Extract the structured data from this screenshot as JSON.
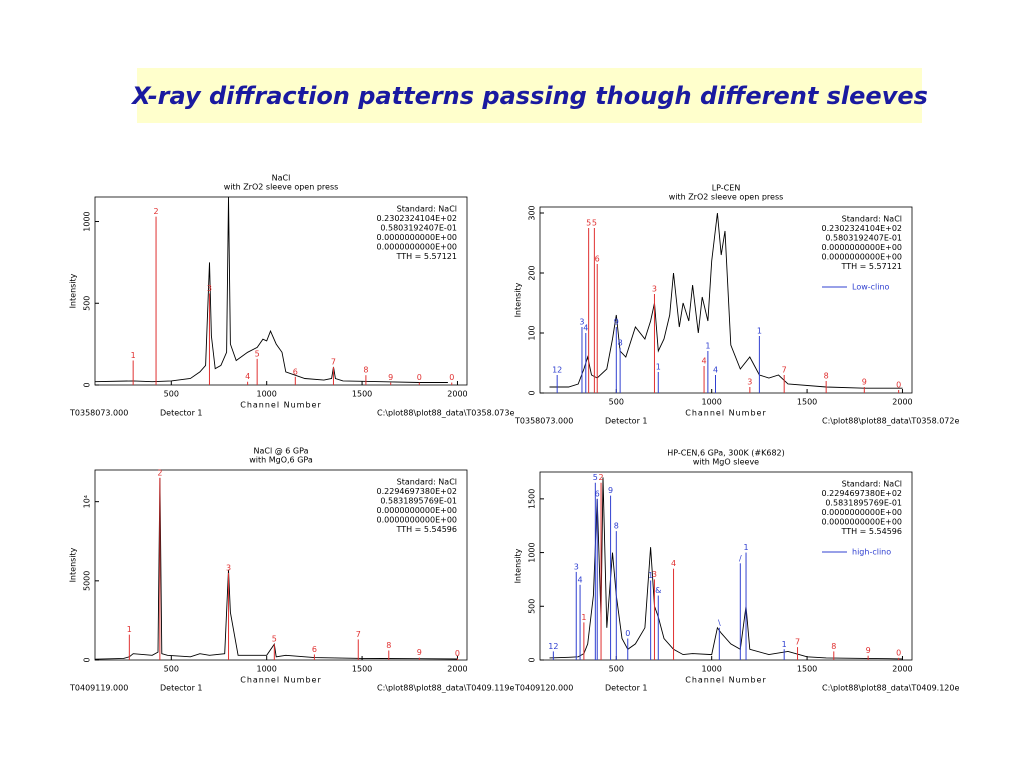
{
  "title": "X-ray diffraction patterns passing though different sleeves",
  "chart_data": [
    {
      "type": "line",
      "title": "NaCl",
      "subtitle": "with ZrO2 sleeve open press",
      "xlabel": "Channel Number",
      "ylabel": "Intensity",
      "xlim": [
        100,
        2050
      ],
      "xticks": [
        500,
        1000,
        1500,
        2000
      ],
      "ylim": [
        0,
        1150
      ],
      "yticks": [
        0,
        500,
        1000
      ],
      "info": [
        "Standard: NaCl",
        "0.2302324104E+02",
        "0.5803192407E-01",
        "0.0000000000E+00",
        "0.0000000000E+00",
        "TTH =    5.57121"
      ],
      "footer": [
        "T0358073.000",
        "Detector 1",
        "C:\\plot88\\plot88_data\\T0358.073e"
      ],
      "series": [
        {
          "style": "line",
          "color": "#000000",
          "x": [
            100,
            300,
            400,
            500,
            600,
            650,
            680,
            700,
            710,
            730,
            760,
            790,
            800,
            810,
            840,
            900,
            950,
            980,
            1000,
            1020,
            1050,
            1080,
            1100,
            1200,
            1300,
            1340,
            1350,
            1360,
            1400,
            1600,
            1800,
            1950
          ],
          "values": [
            20,
            25,
            20,
            25,
            40,
            80,
            120,
            750,
            300,
            100,
            120,
            200,
            1150,
            250,
            150,
            200,
            230,
            280,
            270,
            330,
            250,
            200,
            80,
            40,
            30,
            40,
            110,
            40,
            25,
            20,
            15,
            15
          ]
        },
        {
          "style": "stick",
          "color": "#e03030",
          "x": [
            300,
            420,
            700,
            900,
            950,
            1150,
            1350,
            1520,
            1650,
            1800,
            1970
          ],
          "values": [
            150,
            1030,
            560,
            20,
            160,
            50,
            110,
            60,
            15,
            15,
            15
          ],
          "labels": [
            "1",
            "2",
            "3",
            "4",
            "5",
            "6",
            "7",
            "8",
            "9",
            "0",
            "0"
          ]
        }
      ]
    },
    {
      "type": "line",
      "title": "LP-CEN",
      "subtitle": "with ZrO2 sleeve open press",
      "xlabel": "Channel Number",
      "ylabel": "Intensity",
      "xlim": [
        100,
        2050
      ],
      "xticks": [
        500,
        1000,
        1500,
        2000
      ],
      "ylim": [
        0,
        310
      ],
      "yticks": [
        0,
        100,
        200,
        300
      ],
      "info": [
        "Standard: NaCl",
        "0.2302324104E+02",
        "0.5803192407E-01",
        "0.0000000000E+00",
        "0.0000000000E+00",
        "TTH =    5.57121"
      ],
      "footer": [
        "T0358073.000",
        "Detector 1",
        "C:\\plot88\\plot88_data\\T0358.072e"
      ],
      "series": [
        {
          "style": "line",
          "color": "#000000",
          "x": [
            150,
            250,
            300,
            330,
            350,
            370,
            400,
            450,
            480,
            500,
            520,
            550,
            600,
            650,
            680,
            700,
            720,
            750,
            780,
            800,
            830,
            850,
            880,
            900,
            930,
            950,
            980,
            1000,
            1030,
            1050,
            1070,
            1100,
            1150,
            1200,
            1250,
            1300,
            1350,
            1400,
            1600,
            1800,
            2000
          ],
          "values": [
            10,
            10,
            15,
            40,
            60,
            30,
            25,
            40,
            90,
            130,
            70,
            60,
            110,
            90,
            120,
            150,
            70,
            90,
            130,
            200,
            110,
            150,
            120,
            180,
            100,
            160,
            120,
            220,
            300,
            230,
            270,
            80,
            40,
            60,
            30,
            25,
            30,
            15,
            10,
            8,
            8
          ]
        },
        {
          "style": "stick",
          "color": "#e03030",
          "x": [
            355,
            385,
            400,
            700,
            960,
            1200,
            1380,
            1600,
            1800,
            1980
          ],
          "values": [
            275,
            275,
            215,
            165,
            45,
            10,
            30,
            20,
            10,
            5
          ],
          "labels": [
            "5",
            "5",
            "6",
            "3",
            "4",
            "3",
            "7",
            "8",
            "9",
            "0"
          ]
        },
        {
          "style": "stick",
          "name": "Low-clino",
          "color": "#3040d0",
          "x": [
            190,
            320,
            340,
            500,
            520,
            720,
            980,
            1020,
            1250
          ],
          "values": [
            30,
            110,
            100,
            110,
            75,
            35,
            70,
            30,
            95
          ],
          "labels": [
            "12",
            "3",
            "4",
            "9",
            "8",
            "1",
            "1",
            "4",
            "1"
          ]
        }
      ]
    },
    {
      "type": "line",
      "title": "NaCl @ 6 GPa",
      "subtitle": "with MgO,6 GPa",
      "xlabel": "Channel Number",
      "ylabel": "Intensity",
      "xlim": [
        100,
        2050
      ],
      "xticks": [
        500,
        1000,
        1500,
        2000
      ],
      "ylim": [
        0,
        12000
      ],
      "yticks": [
        0,
        5000,
        {
          "value": 10000,
          "label": "10⁴"
        }
      ],
      "info": [
        "Standard: NaCl",
        "0.2294697380E+02",
        "0.5831895769E-01",
        "0.0000000000E+00",
        "0.0000000000E+00",
        "TTH =    5.54596"
      ],
      "footer": [
        "T0409119.000",
        "Detector 1",
        "C:\\plot88\\plot88_data\\T0409.119e"
      ],
      "series": [
        {
          "style": "line",
          "color": "#000000",
          "x": [
            100,
            250,
            280,
            300,
            400,
            430,
            440,
            450,
            480,
            600,
            650,
            700,
            780,
            800,
            810,
            850,
            1000,
            1040,
            1050,
            1100,
            1250,
            1500,
            1800,
            2000
          ],
          "values": [
            50,
            100,
            200,
            400,
            300,
            500,
            11500,
            400,
            300,
            200,
            400,
            300,
            400,
            5700,
            3000,
            300,
            300,
            1000,
            200,
            300,
            150,
            100,
            80,
            60
          ]
        },
        {
          "style": "stick",
          "color": "#e03030",
          "x": [
            280,
            440,
            800,
            1040,
            1250,
            1480,
            1640,
            1800,
            2000
          ],
          "values": [
            1600,
            11500,
            5500,
            1000,
            350,
            1300,
            600,
            150,
            100
          ],
          "labels": [
            "1",
            "2",
            "3",
            "5",
            "6",
            "7",
            "8",
            "9",
            "0"
          ]
        }
      ]
    },
    {
      "type": "line",
      "title": "HP-CEN,6 GPa, 300K (#K682)",
      "subtitle": "with MgO sleeve",
      "xlabel": "Channel Number",
      "ylabel": "Intensity",
      "xlim": [
        100,
        2050
      ],
      "xticks": [
        500,
        1000,
        1500,
        2000
      ],
      "ylim": [
        0,
        1750
      ],
      "yticks": [
        0,
        500,
        1000,
        1500
      ],
      "info": [
        "Standard: NaCl",
        "0.2294697380E+02",
        "0.5831895769E-01",
        "0.0000000000E+00",
        "0.0000000000E+00",
        "TTH =    5.54596"
      ],
      "footer": [
        "T0409120.000",
        "Detector 1",
        "C:\\plot88\\plot88_data\\T0409.120e"
      ],
      "series": [
        {
          "style": "line",
          "color": "#000000",
          "x": [
            150,
            250,
            300,
            330,
            350,
            380,
            400,
            420,
            430,
            450,
            480,
            500,
            530,
            560,
            600,
            650,
            680,
            700,
            720,
            750,
            800,
            850,
            900,
            1000,
            1030,
            1050,
            1100,
            1150,
            1180,
            1200,
            1300,
            1400,
            1500,
            1600,
            1800,
            2000
          ],
          "values": [
            20,
            25,
            30,
            60,
            150,
            600,
            1500,
            400,
            1700,
            300,
            1000,
            600,
            200,
            100,
            150,
            300,
            1050,
            500,
            400,
            200,
            100,
            50,
            60,
            50,
            300,
            250,
            150,
            100,
            500,
            100,
            50,
            80,
            30,
            20,
            15,
            10
          ]
        },
        {
          "style": "stick",
          "color": "#e03030",
          "x": [
            330,
            420,
            700,
            800,
            1450,
            1640,
            1820,
            1980
          ],
          "values": [
            350,
            1650,
            750,
            850,
            120,
            80,
            40,
            20
          ],
          "labels": [
            "1",
            "2",
            "3",
            "4",
            "7",
            "8",
            "9",
            "0"
          ]
        },
        {
          "style": "stick",
          "name": "high-clino",
          "color": "#3040d0",
          "x": [
            170,
            290,
            310,
            390,
            400,
            470,
            500,
            560,
            680,
            720,
            1040,
            1150,
            1180,
            1380
          ],
          "values": [
            80,
            820,
            700,
            1650,
            1500,
            1530,
            1200,
            200,
            740,
            600,
            300,
            900,
            1000,
            100
          ],
          "labels": [
            "12",
            "3",
            "4",
            "5",
            "6",
            "9",
            "8",
            "0",
            "1",
            "&",
            "\\",
            "/",
            "1",
            "1"
          ]
        }
      ]
    }
  ]
}
